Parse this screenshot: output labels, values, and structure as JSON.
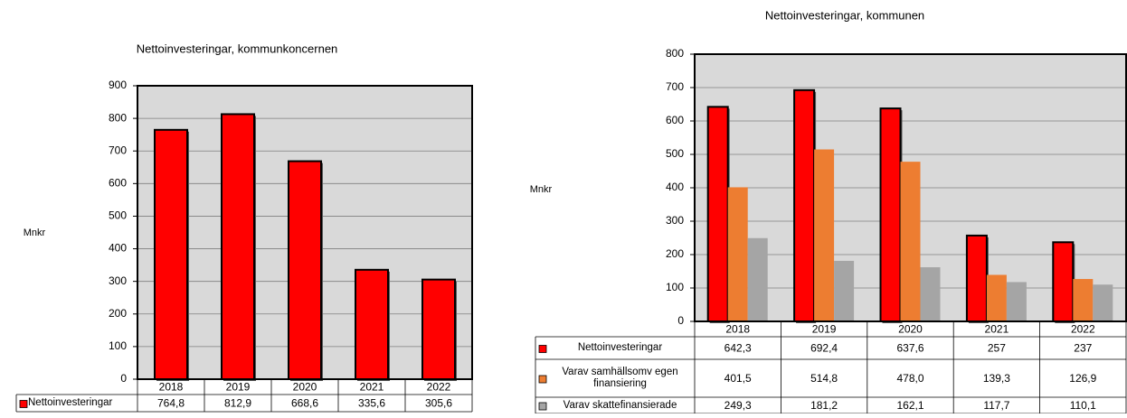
{
  "chart_data": [
    {
      "type": "bar",
      "title": "Nettoinvesteringar, kommunkoncernen",
      "ylabel": "Mnkr",
      "categories": [
        "2018",
        "2019",
        "2020",
        "2021",
        "2022"
      ],
      "series": [
        {
          "name": "Nettoinvesteringar",
          "color": "#ff0000",
          "values": [
            764.8,
            812.9,
            668.6,
            335.6,
            305.6
          ],
          "value_labels": [
            "764,8",
            "812,9",
            "668,6",
            "335,6",
            "305,6"
          ]
        }
      ],
      "ylim": [
        0,
        900
      ],
      "yticks": [
        0,
        100,
        200,
        300,
        400,
        500,
        600,
        700,
        800,
        900
      ],
      "grid": true
    },
    {
      "type": "bar",
      "title": "Nettoinvesteringar, kommunen",
      "ylabel": "Mnkr",
      "categories": [
        "2018",
        "2019",
        "2020",
        "2021",
        "2022"
      ],
      "series": [
        {
          "name": "Nettoinvesteringar",
          "color": "#ff0000",
          "values": [
            642.3,
            692.4,
            637.6,
            257,
            237
          ],
          "value_labels": [
            "642,3",
            "692,4",
            "637,6",
            "257",
            "237"
          ]
        },
        {
          "name": "Varav samhällsomv egen finansiering",
          "color": "#ed7d31",
          "values": [
            401.5,
            514.8,
            478.0,
            139.3,
            126.9
          ],
          "value_labels": [
            "401,5",
            "514,8",
            "478,0",
            "139,3",
            "126,9"
          ]
        },
        {
          "name": "Varav skattefinansierade",
          "color": "#a5a5a5",
          "values": [
            249.3,
            181.2,
            162.1,
            117.7,
            110.1
          ],
          "value_labels": [
            "249,3",
            "181,2",
            "162,1",
            "117,7",
            "110,1"
          ]
        }
      ],
      "ylim": [
        0,
        800
      ],
      "yticks": [
        0,
        100,
        200,
        300,
        400,
        500,
        600,
        700,
        800
      ],
      "grid": true
    }
  ]
}
